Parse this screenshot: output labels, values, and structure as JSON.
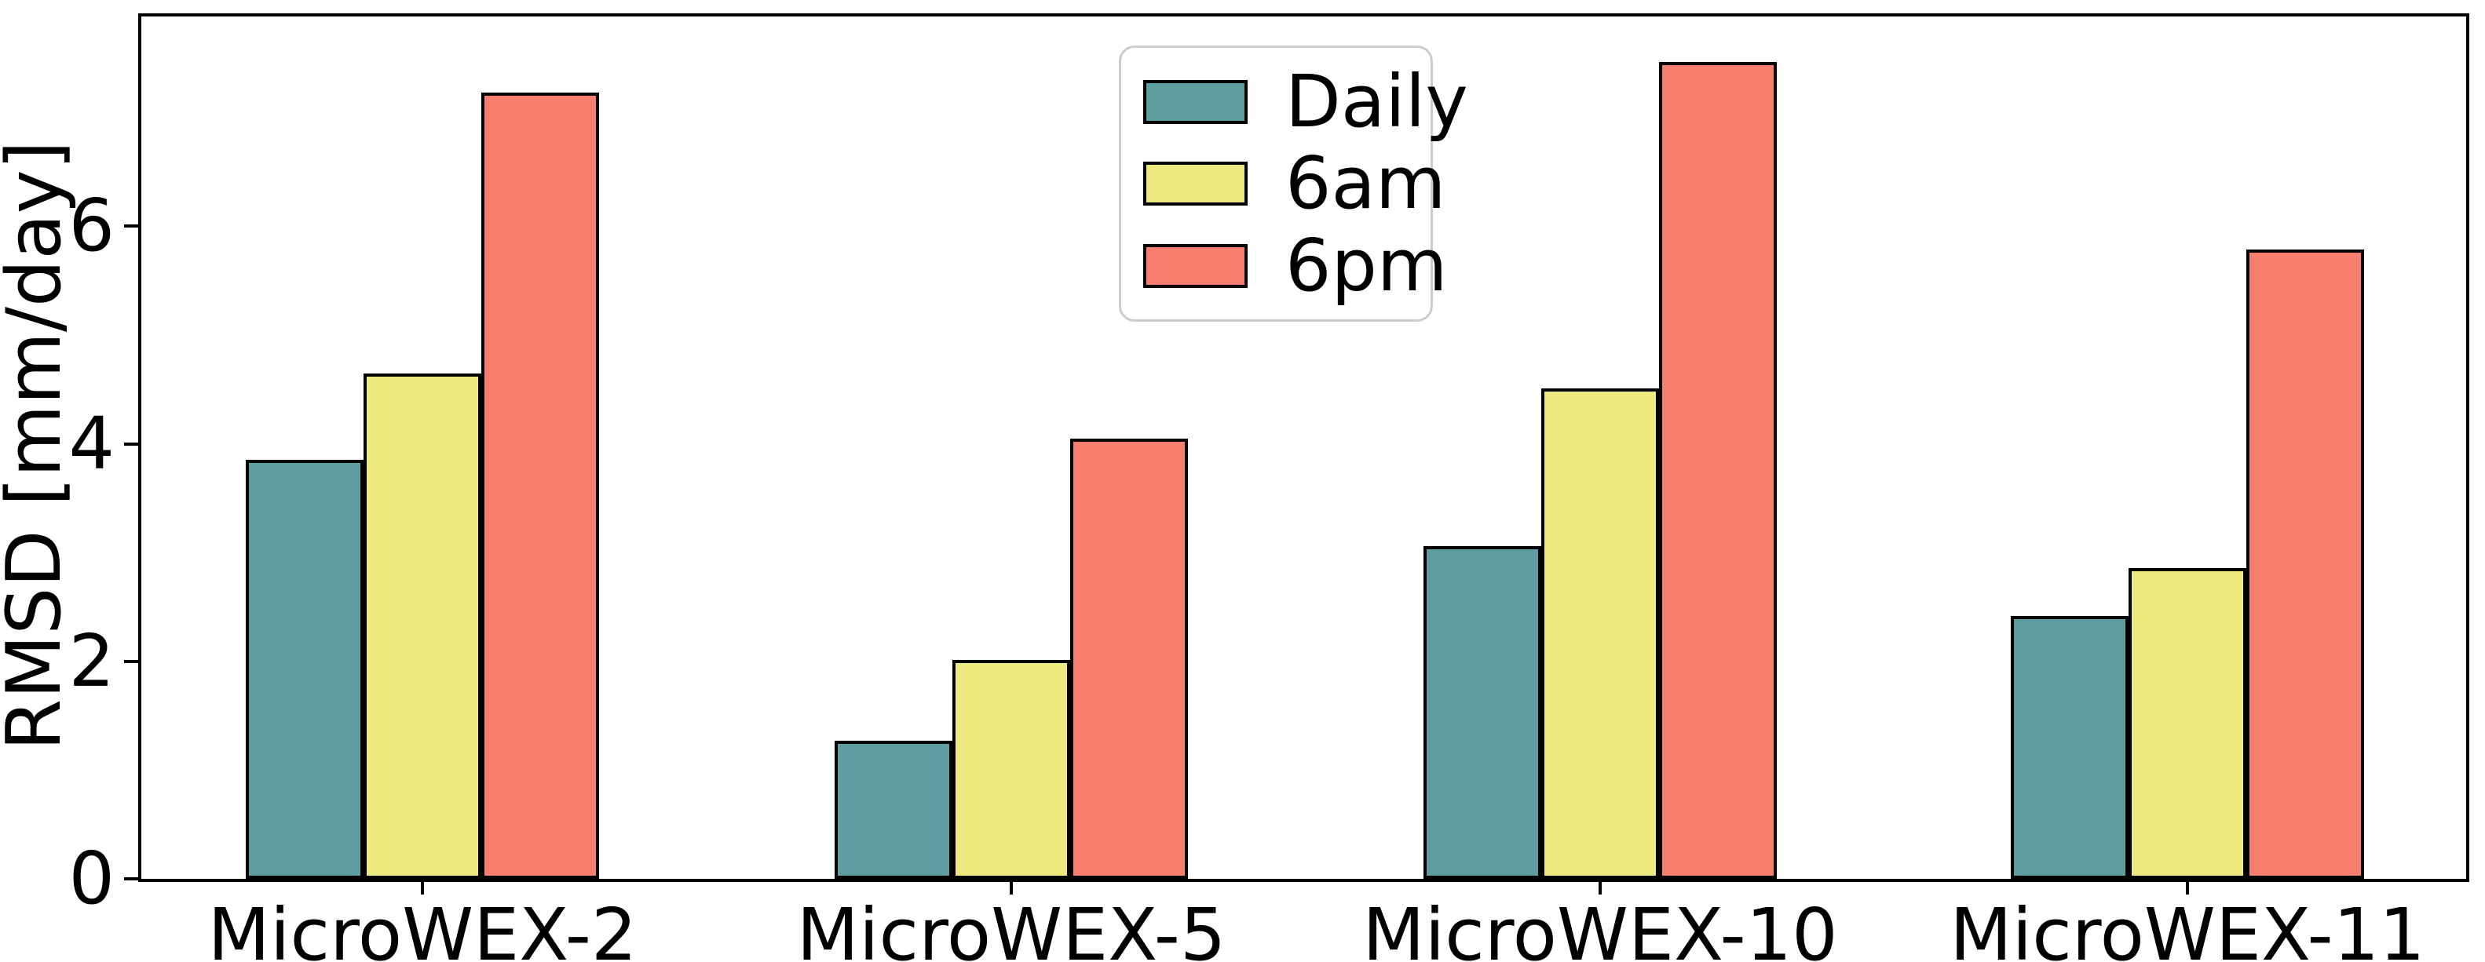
{
  "chart_data": {
    "type": "bar",
    "title": "",
    "xlabel": "",
    "ylabel": "RMSD [mm/day]",
    "categories": [
      "MicroWEX-2",
      "MicroWEX-5",
      "MicroWEX-10",
      "MicroWEX-11"
    ],
    "series": [
      {
        "name": "Daily",
        "color": "#5f9ea0",
        "values": [
          3.85,
          1.27,
          3.06,
          2.42
        ]
      },
      {
        "name": "6am",
        "color": "#ece97f",
        "values": [
          4.65,
          2.01,
          4.51,
          2.86
        ]
      },
      {
        "name": "6pm",
        "color": "#f87e70",
        "values": [
          7.23,
          4.05,
          7.51,
          5.79
        ]
      }
    ],
    "yticks": [
      0,
      2,
      4,
      6
    ],
    "ylim": [
      0,
      7.93
    ],
    "grid": false,
    "legend": {
      "position": "upper-center",
      "entries": [
        "Daily",
        "6am",
        "6pm"
      ]
    },
    "bar_edge_color": "#000000",
    "axis_color": "#000000",
    "background_color": "#ffffff"
  }
}
